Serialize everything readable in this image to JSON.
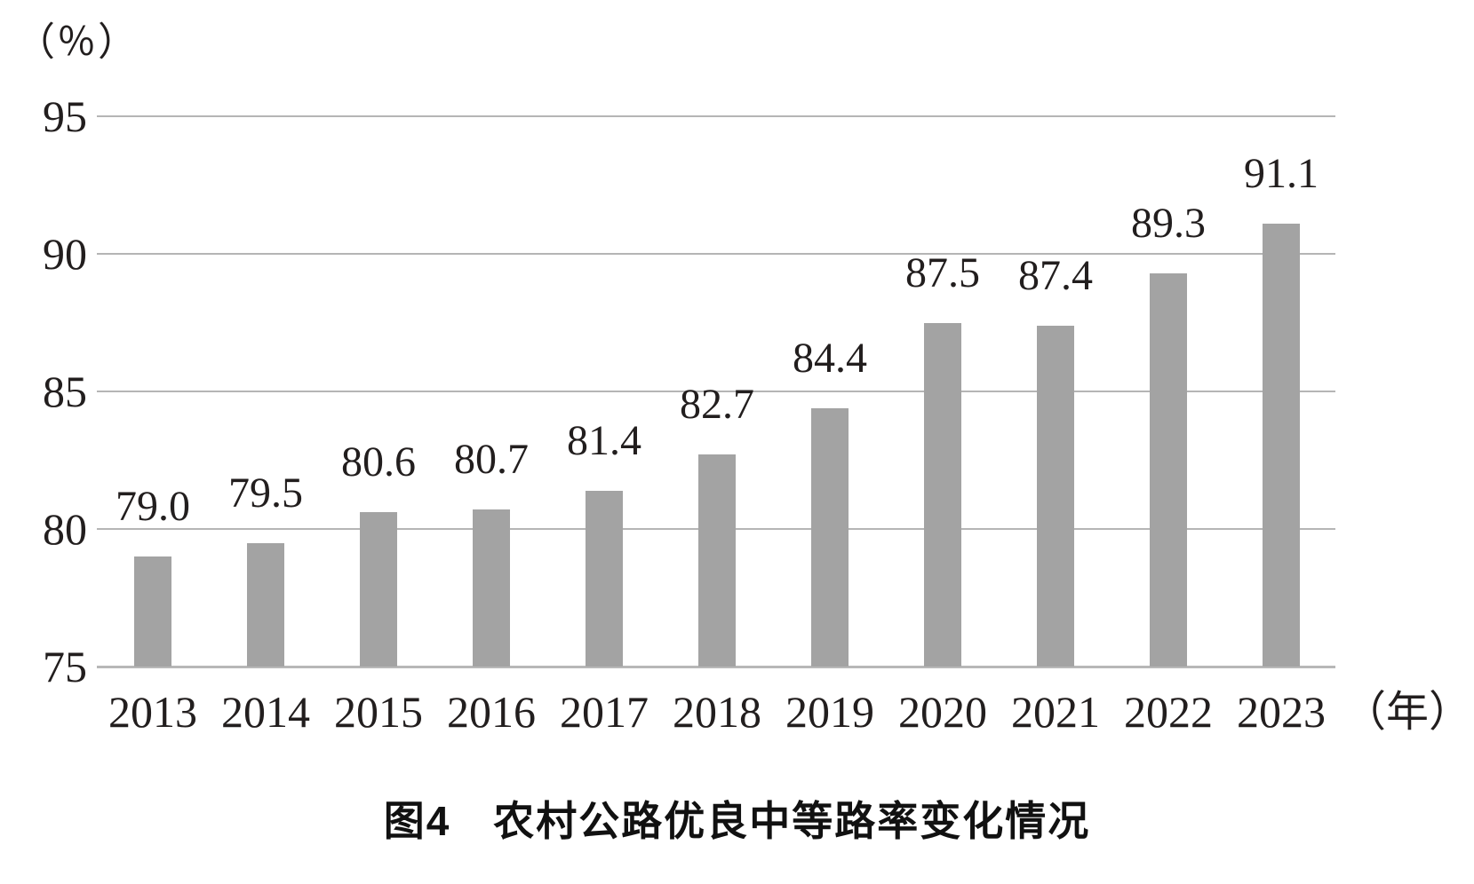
{
  "figure": {
    "y_axis_unit_label": "（％）",
    "x_axis_unit_label": "（年）",
    "caption": "图4　农村公路优良中等路率变化情况"
  },
  "chart_data": {
    "type": "bar",
    "title": "图4 农村公路优良中等路率变化情况",
    "categories": [
      "2013",
      "2014",
      "2015",
      "2016",
      "2017",
      "2018",
      "2019",
      "2020",
      "2021",
      "2022",
      "2023"
    ],
    "values": [
      79.0,
      79.5,
      80.6,
      80.7,
      81.4,
      82.7,
      84.4,
      87.5,
      87.4,
      89.3,
      91.1
    ],
    "value_labels": [
      "79.0",
      "79.5",
      "80.6",
      "80.7",
      "81.4",
      "82.7",
      "84.4",
      "87.5",
      "87.4",
      "89.3",
      "91.1"
    ],
    "xlabel": "（年）",
    "ylabel": "（％）",
    "ylim": [
      75,
      95
    ],
    "yticks": [
      95,
      90,
      85,
      80,
      75
    ],
    "grid": true,
    "legend": "none",
    "bar_color": "#a3a3a3",
    "gridline_color": "#b5b5b5",
    "text_color": "#221e1e"
  }
}
